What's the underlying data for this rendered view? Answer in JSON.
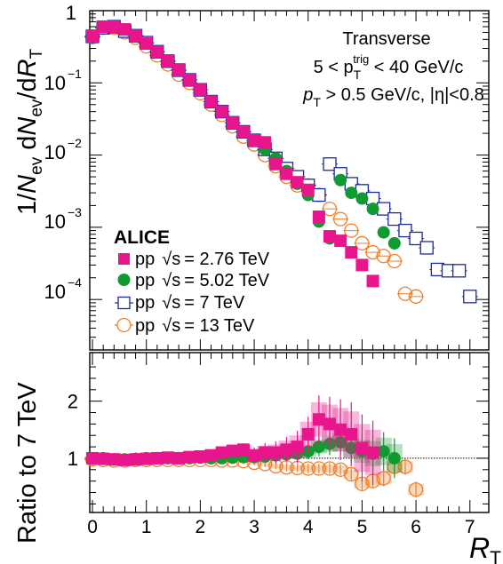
{
  "chart_data": [
    {
      "type": "scatter",
      "panel": "top",
      "ylabel": "1/N_ev dN_ev/dR_T",
      "yscale": "log",
      "ylim": [
        2e-05,
        1.0
      ],
      "xlim": [
        -0.05,
        7.35
      ],
      "y_tick_labels": [
        {
          "value": 1,
          "label": "1"
        },
        {
          "value": 0.1,
          "label": "10",
          "exp": "−1"
        },
        {
          "value": 0.01,
          "label": "10",
          "exp": "−2"
        },
        {
          "value": 0.001,
          "label": "10",
          "exp": "−3"
        },
        {
          "value": 0.0001,
          "label": "10",
          "exp": "−4"
        }
      ],
      "annotation": {
        "line1": "Transverse",
        "line2_pre": "5 < p",
        "line2_sub": "T",
        "line2_sup": "trig",
        "line2_post": " < 40 GeV/c",
        "line3_pre": "p",
        "line3_sub": "T",
        "line3_post": " > 0.5 GeV/c, |η|<0.8"
      },
      "legend": {
        "placement": "bottom-left",
        "title": "ALICE",
        "entries": [
          {
            "prefix": "pp",
            "sqrt": "√s",
            "energy": "= 2.76 TeV"
          },
          {
            "prefix": "pp",
            "sqrt": "√s",
            "energy": "= 5.02 TeV"
          },
          {
            "prefix": "pp",
            "sqrt": "√s",
            "energy": "= 7 TeV"
          },
          {
            "prefix": "pp",
            "sqrt": "√s",
            "energy": "= 13 TeV"
          }
        ]
      },
      "series": [
        {
          "name": "pp √s = 2.76 TeV",
          "color": "#e8158c",
          "marker": "filled-square",
          "x": [
            0.0,
            0.2,
            0.4,
            0.6,
            0.8,
            1.0,
            1.2,
            1.4,
            1.6,
            1.8,
            2.0,
            2.2,
            2.4,
            2.6,
            2.8,
            3.0,
            3.2,
            3.4,
            3.6,
            3.8,
            4.0,
            4.2,
            4.4,
            4.6,
            4.8,
            5.0,
            5.2
          ],
          "y": [
            0.45,
            0.6,
            0.6,
            0.55,
            0.45,
            0.35,
            0.27,
            0.2,
            0.15,
            0.11,
            0.08,
            0.055,
            0.04,
            0.028,
            0.021,
            0.016,
            0.015,
            0.0075,
            0.0055,
            0.0042,
            0.0033,
            0.0014,
            0.00075,
            0.00065,
            0.00045,
            0.0003,
            0.00018
          ]
        },
        {
          "name": "pp √s = 5.02 TeV",
          "color": "#0f9b2f",
          "marker": "filled-circle",
          "x": [
            0.0,
            0.2,
            0.4,
            0.6,
            0.8,
            1.0,
            1.2,
            1.4,
            1.6,
            1.8,
            2.0,
            2.2,
            2.4,
            2.6,
            2.8,
            3.0,
            3.2,
            3.4,
            3.6,
            3.8,
            4.0,
            4.2,
            4.4,
            4.6,
            4.8,
            5.0,
            5.2,
            5.4,
            5.6
          ],
          "y": [
            0.45,
            0.6,
            0.6,
            0.55,
            0.45,
            0.35,
            0.27,
            0.2,
            0.15,
            0.11,
            0.08,
            0.055,
            0.04,
            0.028,
            0.021,
            0.016,
            0.012,
            0.009,
            0.006,
            0.004,
            0.0028,
            0.0012,
            0.0007,
            0.0045,
            0.003,
            0.0025,
            0.0018,
            0.00085,
            0.0006
          ]
        },
        {
          "name": "pp √s = 7 TeV",
          "color": "#1c2a9a",
          "marker": "open-square",
          "x": [
            0.0,
            0.2,
            0.4,
            0.6,
            0.8,
            1.0,
            1.2,
            1.4,
            1.6,
            1.8,
            2.0,
            2.2,
            2.4,
            2.6,
            2.8,
            3.0,
            3.2,
            3.4,
            3.6,
            3.8,
            4.0,
            4.2,
            4.4,
            4.6,
            4.8,
            5.0,
            5.2,
            5.4,
            5.6,
            5.8,
            6.0,
            6.2,
            6.4,
            6.6,
            6.8,
            7.0
          ],
          "y": [
            0.44,
            0.58,
            0.6,
            0.52,
            0.45,
            0.36,
            0.27,
            0.2,
            0.15,
            0.11,
            0.08,
            0.055,
            0.04,
            0.028,
            0.021,
            0.016,
            0.012,
            0.009,
            0.0065,
            0.005,
            0.0038,
            0.0028,
            0.0075,
            0.0055,
            0.004,
            0.0032,
            0.0025,
            0.0018,
            0.0013,
            0.0009,
            0.0007,
            0.00052,
            0.00026,
            0.00025,
            0.00025,
            0.00011
          ]
        },
        {
          "name": "pp √s = 13 TeV",
          "color": "#f07f2a",
          "marker": "open-circle",
          "x": [
            0.0,
            0.2,
            0.4,
            0.6,
            0.8,
            1.0,
            1.2,
            1.4,
            1.6,
            1.8,
            2.0,
            2.2,
            2.4,
            2.6,
            2.8,
            3.0,
            3.2,
            3.4,
            3.6,
            3.8,
            4.0,
            4.2,
            4.4,
            4.6,
            4.8,
            5.0,
            5.2,
            5.4,
            5.6,
            5.8,
            6.0
          ],
          "y": [
            0.43,
            0.58,
            0.58,
            0.5,
            0.42,
            0.32,
            0.24,
            0.18,
            0.13,
            0.1,
            0.072,
            0.05,
            0.036,
            0.025,
            0.018,
            0.014,
            0.01,
            0.007,
            0.005,
            0.0038,
            0.0038,
            0.0028,
            0.0018,
            0.0013,
            0.0009,
            0.0006,
            0.00045,
            0.0004,
            0.00034,
            0.00012,
            0.00011
          ]
        }
      ]
    },
    {
      "type": "scatter",
      "panel": "bottom",
      "ylabel": "Ratio to 7 TeV",
      "xlabel": "R_T",
      "xlim": [
        -0.05,
        7.35
      ],
      "ylim": [
        0.05,
        2.85
      ],
      "x_ticks": [
        0,
        1,
        2,
        3,
        4,
        5,
        6,
        7
      ],
      "y_ticks": [
        1,
        2
      ],
      "reference_line": 1,
      "series": [
        {
          "name": "pp √s = 2.76 TeV",
          "color": "#e8158c",
          "marker": "filled-square",
          "x": [
            0.0,
            0.2,
            0.4,
            0.6,
            0.8,
            1.0,
            1.2,
            1.4,
            1.6,
            1.8,
            2.0,
            2.2,
            2.4,
            2.6,
            2.8,
            3.0,
            3.2,
            3.4,
            3.6,
            3.8,
            4.0,
            4.2,
            4.4,
            4.6,
            4.8,
            5.0,
            5.2
          ],
          "y": [
            1.0,
            0.99,
            0.98,
            0.97,
            0.98,
            0.99,
            1.0,
            1.01,
            1.0,
            1.02,
            1.03,
            1.05,
            1.1,
            1.13,
            1.15,
            1.05,
            1.1,
            1.1,
            1.15,
            1.2,
            1.42,
            1.68,
            1.6,
            1.5,
            1.42,
            1.18,
            1.1
          ],
          "err": [
            0.03,
            0.03,
            0.03,
            0.03,
            0.03,
            0.03,
            0.03,
            0.03,
            0.03,
            0.04,
            0.04,
            0.05,
            0.06,
            0.07,
            0.08,
            0.1,
            0.12,
            0.14,
            0.16,
            0.2,
            0.22,
            0.3,
            0.34,
            0.38,
            0.4,
            0.42,
            0.4
          ]
        },
        {
          "name": "pp √s = 5.02 TeV",
          "color": "#0f9b2f",
          "marker": "filled-circle",
          "x": [
            0.0,
            0.2,
            0.4,
            0.6,
            0.8,
            1.0,
            1.2,
            1.4,
            1.6,
            1.8,
            2.0,
            2.2,
            2.4,
            2.6,
            2.8,
            3.0,
            3.2,
            3.4,
            3.6,
            3.8,
            4.0,
            4.2,
            4.4,
            4.6,
            4.8,
            5.0,
            5.2,
            5.4,
            5.6
          ],
          "y": [
            0.99,
            1.0,
            0.98,
            0.98,
            0.99,
            1.0,
            1.0,
            1.0,
            1.0,
            1.0,
            1.01,
            1.0,
            1.0,
            1.01,
            1.02,
            1.02,
            1.03,
            1.05,
            1.07,
            1.08,
            1.12,
            1.2,
            1.25,
            1.28,
            1.18,
            1.12,
            1.08,
            1.12,
            1.0
          ],
          "err": [
            0.02,
            0.02,
            0.02,
            0.02,
            0.02,
            0.02,
            0.02,
            0.02,
            0.02,
            0.02,
            0.02,
            0.02,
            0.03,
            0.03,
            0.03,
            0.04,
            0.05,
            0.06,
            0.07,
            0.08,
            0.1,
            0.12,
            0.14,
            0.16,
            0.18,
            0.2,
            0.22,
            0.24,
            0.25
          ]
        },
        {
          "name": "pp √s = 13 TeV",
          "color": "#f07f2a",
          "marker": "open-circle",
          "x": [
            0.0,
            0.2,
            0.4,
            0.6,
            0.8,
            1.0,
            1.2,
            1.4,
            1.6,
            1.8,
            2.0,
            2.2,
            2.4,
            2.6,
            2.8,
            3.0,
            3.2,
            3.4,
            3.6,
            3.8,
            4.0,
            4.2,
            4.4,
            4.6,
            4.8,
            5.0,
            5.2,
            5.4,
            5.6,
            5.8,
            6.0
          ],
          "y": [
            0.98,
            0.97,
            0.96,
            0.96,
            0.97,
            0.97,
            0.97,
            0.97,
            0.97,
            0.97,
            0.97,
            0.97,
            0.96,
            0.96,
            0.95,
            0.92,
            0.9,
            0.86,
            0.84,
            0.83,
            0.82,
            0.82,
            0.82,
            0.8,
            0.72,
            0.55,
            0.6,
            0.65,
            0.85,
            0.85,
            0.45
          ],
          "err": [
            0.02,
            0.02,
            0.02,
            0.02,
            0.02,
            0.02,
            0.02,
            0.02,
            0.02,
            0.02,
            0.02,
            0.02,
            0.03,
            0.03,
            0.03,
            0.03,
            0.04,
            0.04,
            0.05,
            0.05,
            0.06,
            0.06,
            0.07,
            0.07,
            0.08,
            0.08,
            0.09,
            0.1,
            0.1,
            0.1,
            0.1
          ]
        }
      ]
    }
  ]
}
